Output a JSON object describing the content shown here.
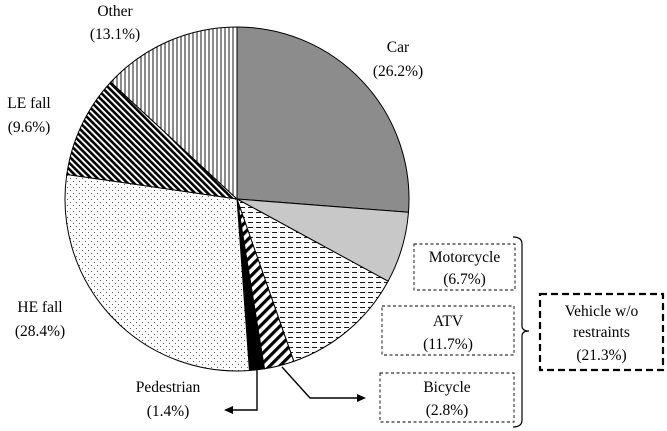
{
  "chart_data": {
    "type": "pie",
    "start_angle_deg": 0,
    "direction": "clockwise",
    "slices": [
      {
        "name": "Car",
        "label": "Car",
        "pct_label": "(26.2%)",
        "value": 26.2,
        "fill": "solid-gray",
        "color": "#8c8c8c"
      },
      {
        "name": "Motorcycle",
        "label": "Motorcycle",
        "pct_label": "(6.7%)",
        "value": 6.7,
        "fill": "solid-lightgray",
        "color": "#c8c8c8"
      },
      {
        "name": "ATV",
        "label": "ATV",
        "pct_label": "(11.7%)",
        "value": 11.7,
        "fill": "horizontal-dashes"
      },
      {
        "name": "Bicycle",
        "label": "Bicycle",
        "pct_label": "(2.8%)",
        "value": 2.8,
        "fill": "diagonal-stripes"
      },
      {
        "name": "Pedestrian",
        "label": "Pedestrian",
        "pct_label": "(1.4%)",
        "value": 1.4,
        "fill": "solid-black",
        "color": "#000000"
      },
      {
        "name": "HE fall",
        "label": "HE fall",
        "pct_label": "(28.4%)",
        "value": 28.4,
        "fill": "dots"
      },
      {
        "name": "LE fall",
        "label": "LE fall",
        "pct_label": "(9.6%)",
        "value": 9.6,
        "fill": "dense-diagonal"
      },
      {
        "name": "Other",
        "label": "Other",
        "pct_label": "(13.1%)",
        "value": 13.1,
        "fill": "vertical-lines"
      }
    ],
    "group": {
      "label_line1": "Vehicle w/o",
      "label_line2": "restraints",
      "pct_label": "(21.3%)",
      "value": 21.3,
      "members": [
        "Motorcycle",
        "ATV",
        "Bicycle"
      ]
    }
  }
}
